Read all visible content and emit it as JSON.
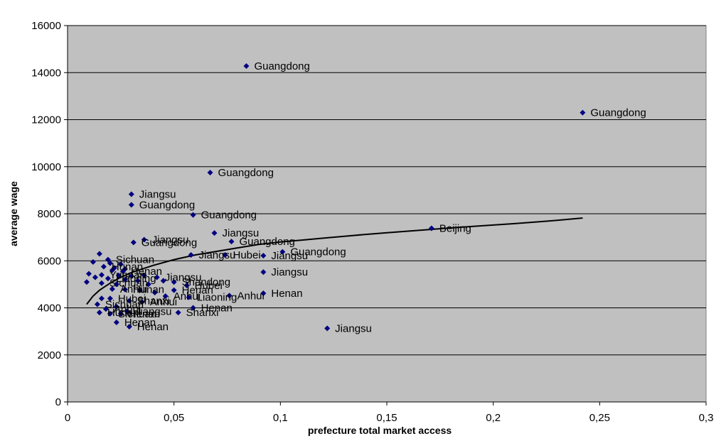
{
  "chart_data": {
    "type": "scatter",
    "title": "",
    "xlabel": "prefecture total market access",
    "ylabel": "average wage",
    "xlim": [
      0,
      0.3
    ],
    "ylim": [
      0,
      16000
    ],
    "x_ticks": [
      "0",
      "0,05",
      "0,1",
      "0,15",
      "0,2",
      "0,25",
      "0,3"
    ],
    "y_ticks": [
      "0",
      "2000",
      "4000",
      "6000",
      "8000",
      "10000",
      "12000",
      "14000",
      "16000"
    ],
    "grid": "horizontal",
    "background": "#c0c0c0",
    "marker_color": "#000080",
    "trend_color": "#000000",
    "trend": [
      [
        0.009,
        4150
      ],
      [
        0.012,
        4500
      ],
      [
        0.015,
        4750
      ],
      [
        0.02,
        5050
      ],
      [
        0.025,
        5300
      ],
      [
        0.03,
        5500
      ],
      [
        0.04,
        5800
      ],
      [
        0.05,
        6050
      ],
      [
        0.06,
        6250
      ],
      [
        0.07,
        6400
      ],
      [
        0.08,
        6550
      ],
      [
        0.09,
        6700
      ],
      [
        0.1,
        6800
      ],
      [
        0.11,
        6880
      ],
      [
        0.12,
        6960
      ],
      [
        0.13,
        7040
      ],
      [
        0.14,
        7120
      ],
      [
        0.15,
        7190
      ],
      [
        0.16,
        7260
      ],
      [
        0.17,
        7330
      ],
      [
        0.18,
        7400
      ],
      [
        0.19,
        7460
      ],
      [
        0.2,
        7520
      ],
      [
        0.21,
        7580
      ],
      [
        0.22,
        7650
      ],
      [
        0.23,
        7720
      ],
      [
        0.242,
        7820
      ]
    ],
    "points": [
      {
        "x": 0.084,
        "y": 14280,
        "label": "Guangdong"
      },
      {
        "x": 0.242,
        "y": 12300,
        "label": "Guangdong"
      },
      {
        "x": 0.067,
        "y": 9750,
        "label": "Guangdong"
      },
      {
        "x": 0.03,
        "y": 8830,
        "label": "Jiangsu"
      },
      {
        "x": 0.03,
        "y": 8380,
        "label": "Guangdong"
      },
      {
        "x": 0.059,
        "y": 7950,
        "label": "Guangdong"
      },
      {
        "x": 0.069,
        "y": 7180,
        "label": "Jiangsu"
      },
      {
        "x": 0.171,
        "y": 7380,
        "label": "Beijing"
      },
      {
        "x": 0.036,
        "y": 6900,
        "label": "Jiangsu"
      },
      {
        "x": 0.031,
        "y": 6780,
        "label": "Guangdong"
      },
      {
        "x": 0.077,
        "y": 6820,
        "label": "Guangdong"
      },
      {
        "x": 0.058,
        "y": 6250,
        "label": "Jiangsu"
      },
      {
        "x": 0.074,
        "y": 6250,
        "label": "Hubei"
      },
      {
        "x": 0.092,
        "y": 6220,
        "label": "Jiangsu"
      },
      {
        "x": 0.101,
        "y": 6380,
        "label": "Guangdong"
      },
      {
        "x": 0.092,
        "y": 5520,
        "label": "Jiangsu"
      },
      {
        "x": 0.092,
        "y": 4620,
        "label": "Henan"
      },
      {
        "x": 0.076,
        "y": 4520,
        "label": "Anhui"
      },
      {
        "x": 0.122,
        "y": 3130,
        "label": "Jiangsu"
      },
      {
        "x": 0.059,
        "y": 4000,
        "label": "Henan"
      },
      {
        "x": 0.052,
        "y": 3800,
        "label": "Shanxi"
      },
      {
        "x": 0.015,
        "y": 6300,
        "label": ""
      },
      {
        "x": 0.019,
        "y": 6050,
        "label": "Sichuan"
      },
      {
        "x": 0.012,
        "y": 5950,
        "label": ""
      },
      {
        "x": 0.02,
        "y": 5900,
        "label": ""
      },
      {
        "x": 0.025,
        "y": 5850,
        "label": ""
      },
      {
        "x": 0.017,
        "y": 5750,
        "label": "Hunan"
      },
      {
        "x": 0.022,
        "y": 5700,
        "label": ""
      },
      {
        "x": 0.027,
        "y": 5650,
        "label": ""
      },
      {
        "x": 0.021,
        "y": 5600,
        "label": ""
      },
      {
        "x": 0.026,
        "y": 5550,
        "label": "Henan"
      },
      {
        "x": 0.01,
        "y": 5450,
        "label": ""
      },
      {
        "x": 0.016,
        "y": 5400,
        "label": "Yunnan"
      },
      {
        "x": 0.024,
        "y": 5380,
        "label": ""
      },
      {
        "x": 0.03,
        "y": 5350,
        "label": ""
      },
      {
        "x": 0.036,
        "y": 5380,
        "label": ""
      },
      {
        "x": 0.042,
        "y": 5300,
        "label": "Jiangsu"
      },
      {
        "x": 0.013,
        "y": 5300,
        "label": ""
      },
      {
        "x": 0.019,
        "y": 5250,
        "label": "Liaoning"
      },
      {
        "x": 0.027,
        "y": 5200,
        "label": ""
      },
      {
        "x": 0.033,
        "y": 5150,
        "label": ""
      },
      {
        "x": 0.045,
        "y": 5150,
        "label": ""
      },
      {
        "x": 0.05,
        "y": 5100,
        "label": "Shandong"
      },
      {
        "x": 0.009,
        "y": 5100,
        "label": ""
      },
      {
        "x": 0.016,
        "y": 5050,
        "label": "Sichuan"
      },
      {
        "x": 0.023,
        "y": 5000,
        "label": ""
      },
      {
        "x": 0.038,
        "y": 5000,
        "label": ""
      },
      {
        "x": 0.056,
        "y": 4950,
        "label": "Hubei"
      },
      {
        "x": 0.021,
        "y": 4800,
        "label": "Anhui"
      },
      {
        "x": 0.027,
        "y": 4780,
        "label": "Hunan"
      },
      {
        "x": 0.034,
        "y": 4750,
        "label": ""
      },
      {
        "x": 0.05,
        "y": 4750,
        "label": "Henan"
      },
      {
        "x": 0.041,
        "y": 4650,
        "label": ""
      },
      {
        "x": 0.046,
        "y": 4500,
        "label": "Anhui"
      },
      {
        "x": 0.057,
        "y": 4450,
        "label": "Liaoning"
      },
      {
        "x": 0.02,
        "y": 4400,
        "label": "Hubei"
      },
      {
        "x": 0.016,
        "y": 4400,
        "label": ""
      },
      {
        "x": 0.029,
        "y": 4300,
        "label": "Shanxi"
      },
      {
        "x": 0.035,
        "y": 4250,
        "label": "Anhui"
      },
      {
        "x": 0.014,
        "y": 4150,
        "label": "Sichuan"
      },
      {
        "x": 0.023,
        "y": 4050,
        "label": ""
      },
      {
        "x": 0.018,
        "y": 3950,
        "label": "Anhui"
      },
      {
        "x": 0.015,
        "y": 3800,
        "label": "Hunan"
      },
      {
        "x": 0.028,
        "y": 3850,
        "label": "Jiangsu"
      },
      {
        "x": 0.02,
        "y": 3750,
        "label": "Sichuan"
      },
      {
        "x": 0.025,
        "y": 3750,
        "label": "Henan"
      },
      {
        "x": 0.023,
        "y": 3380,
        "label": "Henan"
      },
      {
        "x": 0.029,
        "y": 3200,
        "label": "Henan"
      }
    ]
  }
}
